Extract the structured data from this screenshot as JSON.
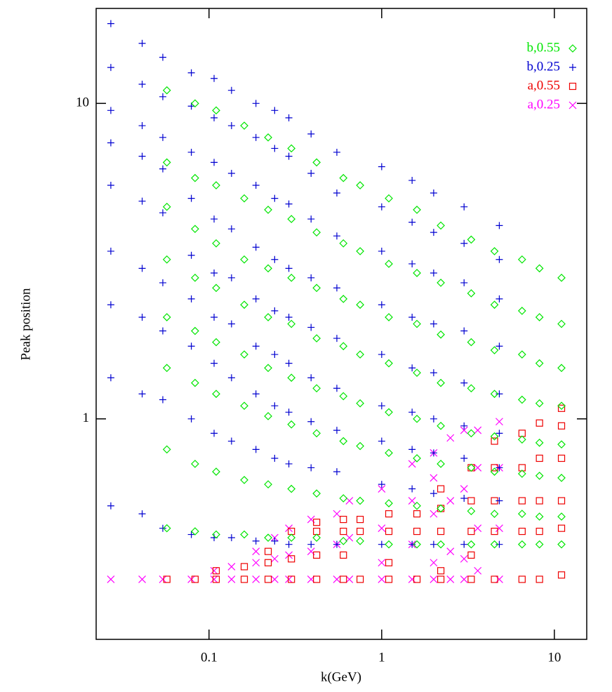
{
  "chart_data": {
    "type": "scatter",
    "xlabel": "k(GeV)",
    "ylabel": "Peak position",
    "xscale": "log",
    "yscale": "log",
    "xlim": [
      0.0222,
      15.4
    ],
    "ylim": [
      0.2,
      20
    ],
    "xticks": [
      0.1,
      1,
      10
    ],
    "yticks": [
      1,
      10
    ],
    "legend": "upper right",
    "series": [
      {
        "name": "b,0.55",
        "color": "#00e600",
        "marker": "diamond",
        "x": [
          0.057,
          0.057,
          0.057,
          0.057,
          0.057,
          0.057,
          0.057,
          0.057,
          0.083,
          0.083,
          0.083,
          0.083,
          0.083,
          0.083,
          0.083,
          0.083,
          0.11,
          0.11,
          0.11,
          0.11,
          0.11,
          0.11,
          0.11,
          0.11,
          0.16,
          0.16,
          0.16,
          0.16,
          0.16,
          0.16,
          0.16,
          0.16,
          0.22,
          0.22,
          0.22,
          0.22,
          0.22,
          0.22,
          0.22,
          0.22,
          0.3,
          0.3,
          0.3,
          0.3,
          0.3,
          0.3,
          0.3,
          0.3,
          0.42,
          0.42,
          0.42,
          0.42,
          0.42,
          0.42,
          0.42,
          0.42,
          0.6,
          0.6,
          0.6,
          0.6,
          0.6,
          0.6,
          0.6,
          0.6,
          0.75,
          0.75,
          0.75,
          0.75,
          0.75,
          0.75,
          0.75,
          0.75,
          1.1,
          1.1,
          1.1,
          1.1,
          1.1,
          1.1,
          1.1,
          1.1,
          1.6,
          1.6,
          1.6,
          1.6,
          1.6,
          1.6,
          1.6,
          1.6,
          2.2,
          2.2,
          2.2,
          2.2,
          2.2,
          2.2,
          2.2,
          2.2,
          3.3,
          3.3,
          3.3,
          3.3,
          3.3,
          3.3,
          3.3,
          3.3,
          4.5,
          4.5,
          4.5,
          4.5,
          4.5,
          4.5,
          4.5,
          4.5,
          6.5,
          6.5,
          6.5,
          6.5,
          6.5,
          6.5,
          6.5,
          6.5,
          8.2,
          8.2,
          8.2,
          8.2,
          8.2,
          8.2,
          8.2,
          8.2,
          11,
          11,
          11,
          11,
          11,
          11,
          11,
          11
        ],
        "y": [
          11,
          6.5,
          4.7,
          3.2,
          2.1,
          1.45,
          0.8,
          0.45,
          10,
          5.8,
          4.0,
          2.8,
          1.9,
          1.3,
          0.72,
          0.44,
          9.5,
          5.5,
          3.6,
          2.6,
          1.75,
          1.2,
          0.68,
          0.43,
          8.5,
          5.0,
          3.2,
          2.3,
          1.6,
          1.1,
          0.64,
          0.43,
          7.8,
          4.6,
          3.0,
          2.1,
          1.45,
          1.02,
          0.62,
          0.42,
          7.2,
          4.3,
          2.8,
          2.0,
          1.35,
          0.96,
          0.6,
          0.42,
          6.5,
          3.9,
          2.6,
          1.8,
          1.25,
          0.9,
          0.58,
          0.42,
          5.8,
          3.6,
          2.4,
          1.7,
          1.18,
          0.85,
          0.56,
          0.41,
          5.5,
          3.4,
          2.3,
          1.6,
          1.12,
          0.82,
          0.55,
          0.41,
          5.0,
          3.1,
          2.1,
          1.5,
          1.05,
          0.78,
          0.54,
          0.4,
          4.6,
          2.9,
          2.0,
          1.4,
          1.0,
          0.75,
          0.53,
          0.4,
          4.1,
          2.7,
          1.85,
          1.3,
          0.95,
          0.72,
          0.52,
          0.4,
          3.7,
          2.5,
          1.75,
          1.25,
          0.9,
          0.7,
          0.51,
          0.4,
          3.4,
          2.3,
          1.65,
          1.2,
          0.88,
          0.68,
          0.5,
          0.4,
          3.2,
          2.2,
          1.6,
          1.15,
          0.86,
          0.67,
          0.5,
          0.4,
          3.0,
          2.1,
          1.5,
          1.12,
          0.84,
          0.66,
          0.49,
          0.4,
          2.8,
          2.0,
          1.45,
          1.1,
          0.83,
          0.65,
          0.49,
          0.4
        ]
      },
      {
        "name": "b,0.25",
        "color": "#0000d0",
        "marker": "plus",
        "x": [
          0.027,
          0.027,
          0.027,
          0.027,
          0.027,
          0.027,
          0.027,
          0.027,
          0.027,
          0.041,
          0.041,
          0.041,
          0.041,
          0.041,
          0.041,
          0.041,
          0.041,
          0.041,
          0.054,
          0.054,
          0.054,
          0.054,
          0.054,
          0.054,
          0.054,
          0.054,
          0.054,
          0.079,
          0.079,
          0.079,
          0.079,
          0.079,
          0.079,
          0.079,
          0.079,
          0.079,
          0.107,
          0.107,
          0.107,
          0.107,
          0.107,
          0.107,
          0.107,
          0.107,
          0.107,
          0.135,
          0.135,
          0.135,
          0.135,
          0.135,
          0.135,
          0.135,
          0.135,
          0.135,
          0.187,
          0.187,
          0.187,
          0.187,
          0.187,
          0.187,
          0.187,
          0.187,
          0.187,
          0.24,
          0.24,
          0.24,
          0.24,
          0.24,
          0.24,
          0.24,
          0.24,
          0.24,
          0.29,
          0.29,
          0.29,
          0.29,
          0.29,
          0.29,
          0.29,
          0.29,
          0.29,
          0.39,
          0.39,
          0.39,
          0.39,
          0.39,
          0.39,
          0.39,
          0.39,
          0.39,
          0.55,
          0.55,
          0.55,
          0.55,
          0.55,
          0.55,
          0.55,
          0.55,
          0.55,
          1,
          1,
          1,
          1,
          1,
          1,
          1,
          1,
          1,
          1.5,
          1.5,
          1.5,
          1.5,
          1.5,
          1.5,
          1.5,
          1.5,
          1.5,
          2,
          2,
          2,
          2,
          2,
          2,
          2,
          2,
          2,
          3,
          3,
          3,
          3,
          3,
          3,
          3,
          3,
          3,
          4.8,
          4.8,
          4.8,
          4.8,
          4.8,
          4.8,
          4.8,
          4.8,
          4.8
        ],
        "y": [
          17.9,
          13,
          9.5,
          7.5,
          5.5,
          3.4,
          2.3,
          1.35,
          0.53,
          15.5,
          11.5,
          8.5,
          6.8,
          4.9,
          3.0,
          2.1,
          1.2,
          0.5,
          14.0,
          10.5,
          7.8,
          6.2,
          4.5,
          2.7,
          1.9,
          1.15,
          0.45,
          12.5,
          9.8,
          7.0,
          5.0,
          3.3,
          2.4,
          1.7,
          1.0,
          0.43,
          12.0,
          9.0,
          6.5,
          4.3,
          2.9,
          2.1,
          1.5,
          0.9,
          0.42,
          11.0,
          8.5,
          6.0,
          4.0,
          2.8,
          2.0,
          1.35,
          0.85,
          0.42,
          10.0,
          7.8,
          5.5,
          3.5,
          2.4,
          1.7,
          1.2,
          0.8,
          0.41,
          9.5,
          7.2,
          5.0,
          3.2,
          2.2,
          1.6,
          1.1,
          0.75,
          0.41,
          9.0,
          6.8,
          4.8,
          3.0,
          2.1,
          1.5,
          1.05,
          0.72,
          0.4,
          8.0,
          6.0,
          4.3,
          2.8,
          1.95,
          1.35,
          0.98,
          0.7,
          0.4,
          7.0,
          5.2,
          3.8,
          2.6,
          1.8,
          1.25,
          0.92,
          0.68,
          0.4,
          6.3,
          4.7,
          3.4,
          2.3,
          1.6,
          1.1,
          0.85,
          0.62,
          0.4,
          5.7,
          4.2,
          3.1,
          2.1,
          1.45,
          1.05,
          0.8,
          0.6,
          0.4,
          5.2,
          3.9,
          2.9,
          2.0,
          1.4,
          1.0,
          0.78,
          0.58,
          0.4,
          4.7,
          3.6,
          2.7,
          1.9,
          1.3,
          0.95,
          0.75,
          0.56,
          0.4,
          4.1,
          3.2,
          2.4,
          1.7,
          1.2,
          0.9,
          0.7,
          0.55,
          0.4
        ]
      },
      {
        "name": "a,0.55",
        "color": "#ee0000",
        "marker": "square",
        "x": [
          0.057,
          0.083,
          0.11,
          0.11,
          0.16,
          0.16,
          0.22,
          0.22,
          0.22,
          0.3,
          0.3,
          0.3,
          0.42,
          0.42,
          0.42,
          0.42,
          0.6,
          0.6,
          0.6,
          0.6,
          0.75,
          0.75,
          0.75,
          1.1,
          1.1,
          1.1,
          1.1,
          1.6,
          1.6,
          1.6,
          2.2,
          2.2,
          2.2,
          2.2,
          2.2,
          3.3,
          3.3,
          3.3,
          3.3,
          3.3,
          4.5,
          4.5,
          4.5,
          4.5,
          4.5,
          6.5,
          6.5,
          6.5,
          6.5,
          6.5,
          8.2,
          8.2,
          8.2,
          8.2,
          8.2,
          11,
          11,
          11,
          11,
          11,
          11
        ],
        "y": [
          0.31,
          0.31,
          0.31,
          0.33,
          0.31,
          0.34,
          0.31,
          0.35,
          0.38,
          0.31,
          0.36,
          0.44,
          0.31,
          0.37,
          0.44,
          0.47,
          0.31,
          0.37,
          0.44,
          0.48,
          0.31,
          0.44,
          0.48,
          0.31,
          0.35,
          0.44,
          0.5,
          0.31,
          0.44,
          0.5,
          0.31,
          0.33,
          0.44,
          0.52,
          0.6,
          0.31,
          0.37,
          0.44,
          0.55,
          0.7,
          0.31,
          0.44,
          0.55,
          0.7,
          0.85,
          0.31,
          0.44,
          0.55,
          0.7,
          0.9,
          0.31,
          0.44,
          0.55,
          0.75,
          0.97,
          0.32,
          0.45,
          0.55,
          0.75,
          0.95,
          1.08
        ]
      },
      {
        "name": "a,0.25",
        "color": "#ff00ff",
        "marker": "cross",
        "x": [
          0.027,
          0.041,
          0.054,
          0.079,
          0.107,
          0.107,
          0.135,
          0.135,
          0.187,
          0.187,
          0.187,
          0.24,
          0.24,
          0.24,
          0.29,
          0.29,
          0.29,
          0.39,
          0.39,
          0.39,
          0.55,
          0.55,
          0.55,
          0.65,
          0.65,
          0.65,
          1,
          1,
          1,
          1,
          1.5,
          1.5,
          1.5,
          1.5,
          2,
          2,
          2,
          2,
          2,
          2.5,
          2.5,
          2.5,
          2.5,
          3,
          3,
          3,
          3,
          3.6,
          3.6,
          3.6,
          3.6,
          4.8,
          4.8,
          4.8,
          4.8
        ],
        "y": [
          0.31,
          0.31,
          0.31,
          0.31,
          0.31,
          0.33,
          0.31,
          0.34,
          0.31,
          0.35,
          0.38,
          0.31,
          0.36,
          0.42,
          0.31,
          0.37,
          0.45,
          0.31,
          0.38,
          0.48,
          0.31,
          0.4,
          0.5,
          0.31,
          0.42,
          0.55,
          0.31,
          0.35,
          0.45,
          0.6,
          0.31,
          0.4,
          0.55,
          0.72,
          0.31,
          0.35,
          0.5,
          0.65,
          0.78,
          0.31,
          0.38,
          0.55,
          0.87,
          0.31,
          0.36,
          0.6,
          0.92,
          0.33,
          0.45,
          0.7,
          0.92,
          0.31,
          0.45,
          0.7,
          0.98
        ]
      }
    ]
  }
}
